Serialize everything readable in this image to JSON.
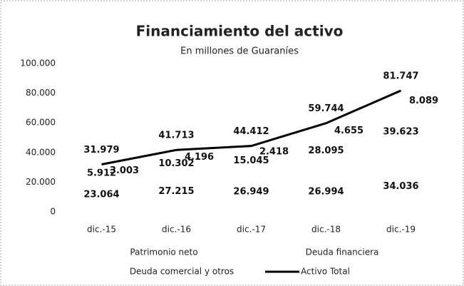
{
  "chart_data": {
    "type": "stacked-bar-line",
    "title": "Financiamiento del activo",
    "subtitle": "En millones de Guaraníes",
    "categories": [
      "dic.-15",
      "dic.-16",
      "dic.-17",
      "dic.-18",
      "dic.-19"
    ],
    "series": [
      {
        "name": "Patrimonio neto",
        "color": "#ffffff",
        "values": [
          23064,
          27215,
          26949,
          26994,
          34036
        ],
        "value_labels": [
          "23.064",
          "27.215",
          "26.949",
          "26.994",
          "34.036"
        ]
      },
      {
        "name": "Deuda financiera",
        "color": "#ffffff",
        "values": [
          5912,
          10302,
          15045,
          28095,
          39623
        ],
        "value_labels": [
          "5.912",
          "10.302",
          "15.045",
          "28.095",
          "39.623"
        ]
      },
      {
        "name": "Deuda comercial y otros",
        "color": "#ffffff",
        "values": [
          3003,
          4196,
          2418,
          4655,
          8089
        ],
        "value_labels": [
          "3.003",
          "4.196",
          "2.418",
          "4.655",
          "8.089"
        ]
      },
      {
        "name": "Activo Total",
        "type": "line",
        "color": "#000000",
        "values": [
          31979,
          41713,
          44412,
          59744,
          81747
        ],
        "value_labels": [
          "31.979",
          "41.713",
          "44.412",
          "59.744",
          "81.747"
        ]
      }
    ],
    "ylim": [
      0,
      100000
    ],
    "yticks": [
      0,
      {
        "value": 20000,
        "label": "20.000"
      },
      {
        "value": 40000,
        "label": "40.000"
      },
      {
        "value": 60000,
        "label": "60.000"
      },
      {
        "value": 80000,
        "label": "80.000"
      },
      {
        "value": 100000,
        "label": "100.000"
      }
    ],
    "grid": false
  }
}
